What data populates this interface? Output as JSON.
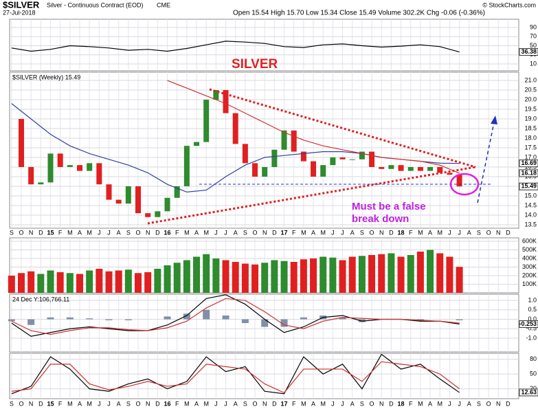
{
  "header": {
    "symbol": "$SILVER",
    "name": "Silver - Continuous Contract (EOD)",
    "exchange": "CME",
    "date": "27-Jul-2018",
    "quote": "Open 15.54 High 15.70 Low 15.34 Close 15.49 Volume 302.2K Chg -0.06 (-0.36%)",
    "credit": "© StockCharts.com"
  },
  "chart_data": [
    {
      "type": "line",
      "panel": "rsi",
      "xlim": [
        -0.2,
        52.1
      ],
      "ylim": [
        -5,
        108
      ],
      "yticks": [
        10,
        30,
        50,
        70,
        90
      ],
      "grid": true,
      "series": [
        {
          "color": "#000000",
          "x": [
            0,
            2,
            4,
            6,
            8,
            10,
            12,
            14,
            16,
            18,
            20,
            22,
            24,
            26,
            28,
            30,
            32,
            34,
            36,
            38,
            40,
            42,
            44,
            46
          ],
          "values": [
            45,
            38,
            42,
            50,
            48,
            45,
            40,
            42,
            38,
            44,
            52,
            60,
            58,
            55,
            48,
            46,
            52,
            54,
            50,
            47,
            49,
            52,
            48,
            36.38
          ]
        }
      ],
      "last_labels": [
        36.38
      ]
    },
    {
      "type": "candle",
      "panel": "price",
      "title": "$SILVER (Weekly) 15.49",
      "annotation": "SILVER",
      "note": "Must be a false break down",
      "xlim": [
        -0.2,
        52.1
      ],
      "ylim": [
        13.32,
        21.43
      ],
      "yticks": [
        {
          "value": 13.5,
          "label": "13.5"
        },
        {
          "value": 14,
          "label": "14.0"
        },
        {
          "value": 14.5,
          "label": "14.5"
        },
        {
          "value": 15,
          "label": "15.0"
        },
        {
          "value": 15.5,
          "label": "15.5"
        },
        {
          "value": 16,
          "label": "16.0"
        },
        {
          "value": 16.5,
          "label": "16.5"
        },
        {
          "value": 17,
          "label": "17.0"
        },
        {
          "value": 17.5,
          "label": "17.5"
        },
        {
          "value": 18,
          "label": "18.0"
        },
        {
          "value": 18.5,
          "label": "18.5"
        },
        {
          "value": 19,
          "label": "19.0"
        },
        {
          "value": 19.5,
          "label": "19.5"
        },
        {
          "value": 20,
          "label": "20.0"
        },
        {
          "value": 20.5,
          "label": "20.5"
        },
        {
          "value": 21,
          "label": "21.0"
        }
      ],
      "grid": true,
      "up_color": "#2e8b2e",
      "down_color": "#e02020",
      "closes": [
        19.0,
        16.5,
        15.6,
        15.7,
        17.2,
        16.5,
        16.6,
        16.3,
        16.7,
        15.6,
        14.8,
        14.6,
        15.5,
        14.1,
        13.9,
        14.2,
        14.9,
        15.5,
        17.6,
        17.8,
        20.0,
        20.5,
        19.3,
        17.7,
        16.7,
        16.0,
        16.5,
        17.4,
        18.4,
        17.3,
        16.8,
        16.0,
        16.6,
        17.0,
        16.9,
        16.9,
        17.3,
        16.5,
        16.4,
        16.6,
        16.3,
        16.5,
        16.3,
        16.5,
        16.2,
        16.1,
        15.49
      ],
      "series": [
        {
          "color": "#3040a0",
          "x": [
            0,
            2,
            4,
            6,
            8,
            10,
            12,
            14,
            16,
            18,
            20,
            22,
            24,
            26,
            28,
            30,
            32,
            34,
            36,
            38,
            40,
            42,
            44,
            46
          ],
          "values": [
            19.8,
            19.0,
            18.2,
            17.6,
            17.2,
            16.9,
            16.6,
            16.2,
            15.6,
            15.2,
            15.3,
            16.0,
            16.6,
            17.0,
            17.1,
            17.2,
            17.3,
            17.3,
            17.2,
            17.0,
            16.9,
            16.8,
            16.7,
            16.69
          ]
        },
        {
          "color": "#d03030",
          "x": [
            16,
            18,
            20,
            22,
            24,
            26,
            28,
            30,
            32,
            34,
            36,
            38,
            40,
            42,
            44,
            46
          ],
          "values": [
            21.0,
            20.6,
            20.2,
            19.8,
            19.3,
            18.8,
            18.3,
            17.9,
            17.6,
            17.4,
            17.2,
            17.0,
            16.9,
            16.8,
            16.6,
            16.18
          ]
        }
      ],
      "last_labels": [
        16.69,
        16.18,
        15.49
      ]
    },
    {
      "type": "volume",
      "panel": "volume",
      "xlim": [
        -0.2,
        52.1
      ],
      "ylim": [
        0,
        640000
      ],
      "yticks": [
        {
          "value": 100000,
          "label": "100K"
        },
        {
          "value": 200000,
          "label": "200K"
        },
        {
          "value": 300000,
          "label": "300K"
        },
        {
          "value": 400000,
          "label": "400K"
        },
        {
          "value": 500000,
          "label": "500K"
        },
        {
          "value": 600000,
          "label": "600K"
        }
      ],
      "grid": true,
      "values": [
        200000,
        230000,
        250000,
        220000,
        260000,
        240000,
        230000,
        220000,
        260000,
        280000,
        250000,
        260000,
        270000,
        230000,
        240000,
        280000,
        320000,
        350000,
        380000,
        420000,
        450000,
        400000,
        380000,
        360000,
        340000,
        330000,
        350000,
        380000,
        370000,
        360000,
        390000,
        400000,
        420000,
        410000,
        380000,
        420000,
        430000,
        440000,
        450000,
        460000,
        420000,
        440000,
        480000,
        500000,
        460000,
        420000,
        302200
      ],
      "colors": [
        "#e02020",
        "#e02020",
        "#e02020",
        "#2e8b2e",
        "#2e8b2e",
        "#e02020",
        "#2e8b2e",
        "#e02020",
        "#2e8b2e",
        "#e02020",
        "#e02020",
        "#e02020",
        "#2e8b2e",
        "#e02020",
        "#e02020",
        "#2e8b2e",
        "#2e8b2e",
        "#2e8b2e",
        "#2e8b2e",
        "#2e8b2e",
        "#2e8b2e",
        "#2e8b2e",
        "#e02020",
        "#e02020",
        "#e02020",
        "#e02020",
        "#2e8b2e",
        "#2e8b2e",
        "#2e8b2e",
        "#e02020",
        "#e02020",
        "#e02020",
        "#2e8b2e",
        "#2e8b2e",
        "#e02020",
        "#e02020",
        "#2e8b2e",
        "#e02020",
        "#e02020",
        "#2e8b2e",
        "#e02020",
        "#2e8b2e",
        "#e02020",
        "#2e8b2e",
        "#e02020",
        "#e02020",
        "#e02020"
      ]
    },
    {
      "type": "macd",
      "panel": "macd",
      "title": "24 Dec Y:106,766.11",
      "xlim": [
        -0.2,
        52.1
      ],
      "ylim": [
        -1.73,
        1.33
      ],
      "yticks": [
        {
          "value": -1,
          "label": "-1.0"
        },
        {
          "value": -0.5,
          "label": "-0.5"
        },
        {
          "value": 0,
          "label": "0.0"
        },
        {
          "value": 0.5,
          "label": "0.5"
        },
        {
          "value": 1,
          "label": "1.0"
        }
      ],
      "grid": true,
      "x": [
        0,
        2,
        4,
        6,
        8,
        10,
        12,
        14,
        16,
        18,
        20,
        22,
        24,
        26,
        28,
        30,
        32,
        34,
        36,
        38,
        40,
        42,
        44,
        46
      ],
      "histogram": [
        -0.1,
        -0.3,
        0.1,
        0.1,
        0.05,
        -0.05,
        -0.05,
        0,
        0.15,
        0.3,
        0.5,
        0.2,
        -0.2,
        -0.4,
        -0.4,
        0.1,
        0.2,
        0.1,
        -0.15,
        0,
        0,
        -0.05,
        0,
        -0.05
      ],
      "histogram_color": "#8090a8",
      "series": [
        {
          "color": "#000000",
          "values": [
            -0.2,
            -0.9,
            -0.7,
            -0.5,
            -0.4,
            -0.5,
            -0.6,
            -0.6,
            -0.3,
            0.2,
            1.1,
            1.3,
            0.8,
            0.0,
            -0.7,
            -0.4,
            0.1,
            0.2,
            -0.1,
            0.0,
            0.0,
            -0.1,
            -0.1,
            -0.253
          ]
        },
        {
          "color": "#d03030",
          "values": [
            -0.1,
            -0.6,
            -0.8,
            -0.6,
            -0.45,
            -0.45,
            -0.55,
            -0.6,
            -0.45,
            -0.1,
            0.6,
            1.1,
            1.0,
            0.4,
            -0.3,
            -0.5,
            -0.1,
            0.1,
            0.05,
            0.0,
            0.0,
            -0.05,
            -0.1,
            -0.2
          ]
        }
      ],
      "last_labels": [
        -0.253
      ]
    },
    {
      "type": "line",
      "panel": "stoch",
      "xlim": [
        -0.2,
        52.1
      ],
      "ylim": [
        0,
        92
      ],
      "yticks": [
        20,
        50,
        80
      ],
      "grid": true,
      "series": [
        {
          "color": "#000000",
          "x": [
            0,
            2,
            4,
            6,
            8,
            10,
            12,
            14,
            16,
            18,
            20,
            22,
            24,
            26,
            28,
            30,
            32,
            34,
            36,
            38,
            40,
            42,
            44,
            46
          ],
          "values": [
            10,
            25,
            85,
            60,
            20,
            15,
            30,
            40,
            20,
            35,
            85,
            55,
            65,
            15,
            10,
            85,
            50,
            70,
            20,
            90,
            60,
            70,
            40,
            12.63
          ]
        },
        {
          "color": "#d03030",
          "x": [
            0,
            2,
            4,
            6,
            8,
            10,
            12,
            14,
            16,
            18,
            20,
            22,
            24,
            26,
            28,
            30,
            32,
            34,
            36,
            38,
            40,
            42,
            44,
            46
          ],
          "values": [
            15,
            20,
            70,
            70,
            30,
            18,
            25,
            35,
            25,
            30,
            70,
            65,
            60,
            30,
            12,
            60,
            60,
            60,
            35,
            75,
            70,
            65,
            50,
            20
          ]
        }
      ],
      "last_labels": [
        12.63
      ]
    }
  ],
  "months": [
    "S",
    "O",
    "N",
    "D",
    "15",
    "F",
    "M",
    "A",
    "M",
    "J",
    "J",
    "A",
    "S",
    "O",
    "N",
    "D",
    "16",
    "F",
    "M",
    "A",
    "M",
    "J",
    "J",
    "A",
    "S",
    "O",
    "N",
    "D",
    "17",
    "F",
    "M",
    "A",
    "M",
    "J",
    "J",
    "A",
    "S",
    "O",
    "N",
    "D",
    "18",
    "F",
    "M",
    "A",
    "M",
    "J",
    "J",
    "A",
    "S",
    "O",
    "N",
    "D"
  ]
}
